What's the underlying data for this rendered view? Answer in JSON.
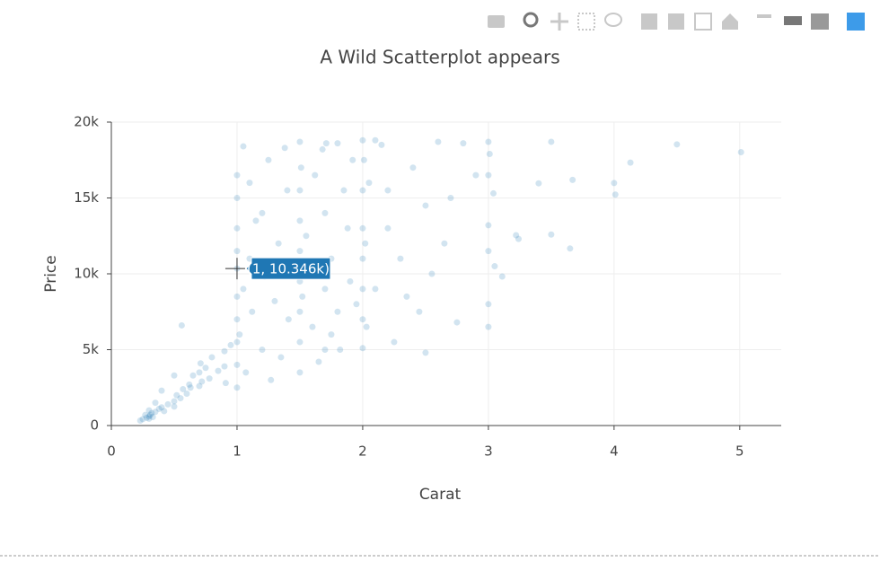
{
  "chart_data": {
    "type": "scatter",
    "title": "A Wild Scatterplot appears",
    "x_label": "Carat",
    "y_label": "Price",
    "xlim": [
      0,
      5.33
    ],
    "ylim": [
      0,
      20000
    ],
    "xticks": [
      0,
      1,
      2,
      3,
      4,
      5
    ],
    "yticks": [
      0,
      {
        "value": 5000,
        "label": "5k"
      },
      {
        "value": 10000,
        "label": "10k"
      },
      {
        "value": 15000,
        "label": "15k"
      },
      {
        "value": 20000,
        "label": "20k"
      }
    ],
    "grid": true,
    "series": [
      {
        "color": "#1f77b4",
        "x": [
          0.23,
          0.25,
          0.28,
          0.3,
          0.3,
          0.31,
          0.32,
          0.33,
          0.35,
          0.38,
          0.4,
          0.42,
          0.45,
          0.5,
          0.5,
          0.52,
          0.55,
          0.57,
          0.6,
          0.62,
          0.65,
          0.7,
          0.7,
          0.71,
          0.72,
          0.75,
          0.78,
          0.8,
          0.85,
          0.9,
          0.9,
          0.91,
          0.95,
          0.5,
          0.56,
          0.63,
          0.4,
          0.35,
          0.3,
          0.27,
          1,
          1,
          1,
          1,
          1,
          1,
          1,
          1,
          1,
          1,
          1.02,
          1.05,
          1.07,
          1.1,
          1.12,
          1.15,
          1.2,
          1.22,
          1.25,
          1.3,
          1.33,
          1.35,
          1.4,
          1.41,
          1.45,
          1.05,
          1.1,
          1.2,
          1.27,
          1.38,
          1.5,
          1.5,
          1.5,
          1.5,
          1.5,
          1.5,
          1.5,
          1.5,
          1.51,
          1.52,
          1.55,
          1.6,
          1.62,
          1.7,
          1.7,
          1.7,
          1.71,
          1.75,
          1.8,
          1.85,
          1.9,
          1.92,
          1.8,
          1.65,
          1.58,
          1.75,
          1.88,
          1.95,
          1.68,
          1.82,
          2,
          2,
          2,
          2,
          2,
          2,
          2,
          2.01,
          2.02,
          2.03,
          2.05,
          2.1,
          2.15,
          2.2,
          2.25,
          2.3,
          2.4,
          2.45,
          2.5,
          2.55,
          2.6,
          2.65,
          2.7,
          2.75,
          2.8,
          2.5,
          2.35,
          2.2,
          2.1,
          2.9,
          3,
          3,
          3,
          3,
          3,
          3,
          3.01,
          3.04,
          3.05,
          3.11,
          3.22,
          3.24,
          3.4,
          3.5,
          3.5,
          3.65,
          3.67,
          4,
          4.01,
          4.13,
          4.5,
          5.01
        ],
        "values": [
          326,
          420,
          510,
          600,
          450,
          700,
          820,
          560,
          900,
          1100,
          1200,
          950,
          1400,
          1600,
          1250,
          2000,
          1800,
          2400,
          2100,
          2700,
          3300,
          2600,
          3500,
          4100,
          2900,
          3800,
          3100,
          4500,
          3600,
          3900,
          4900,
          2800,
          5300,
          3300,
          6600,
          2500,
          2300,
          1500,
          1000,
          700,
          2500,
          4000,
          5500,
          7000,
          8500,
          10346,
          11500,
          13000,
          15000,
          16500,
          6000,
          9000,
          3500,
          11000,
          7500,
          13500,
          5000,
          9800,
          17500,
          8200,
          12000,
          4500,
          15500,
          7000,
          10500,
          18400,
          16000,
          14000,
          3000,
          18300,
          3500,
          5500,
          7500,
          9500,
          11500,
          13500,
          15500,
          18700,
          17000,
          8500,
          12500,
          6500,
          16500,
          5000,
          9000,
          14000,
          18600,
          11000,
          7500,
          15500,
          9500,
          17500,
          18600,
          4200,
          10000,
          6000,
          13000,
          8000,
          18200,
          5000,
          5100,
          7000,
          9000,
          11000,
          13000,
          15500,
          18800,
          17500,
          12000,
          6500,
          16000,
          9000,
          18500,
          13000,
          5500,
          11000,
          17000,
          7500,
          14500,
          10000,
          18700,
          12000,
          15000,
          6800,
          18600,
          4800,
          8500,
          15500,
          18800,
          16500,
          6500,
          8000,
          11500,
          13200,
          16500,
          18700,
          17900,
          15300,
          10500,
          9823,
          12545,
          12300,
          15964,
          18701,
          12587,
          11668,
          16193,
          15984,
          15223,
          17329,
          18531,
          18018
        ]
      }
    ],
    "hover": {
      "x": 1,
      "y": 10346,
      "label": "(1, 10.346k)"
    }
  }
}
